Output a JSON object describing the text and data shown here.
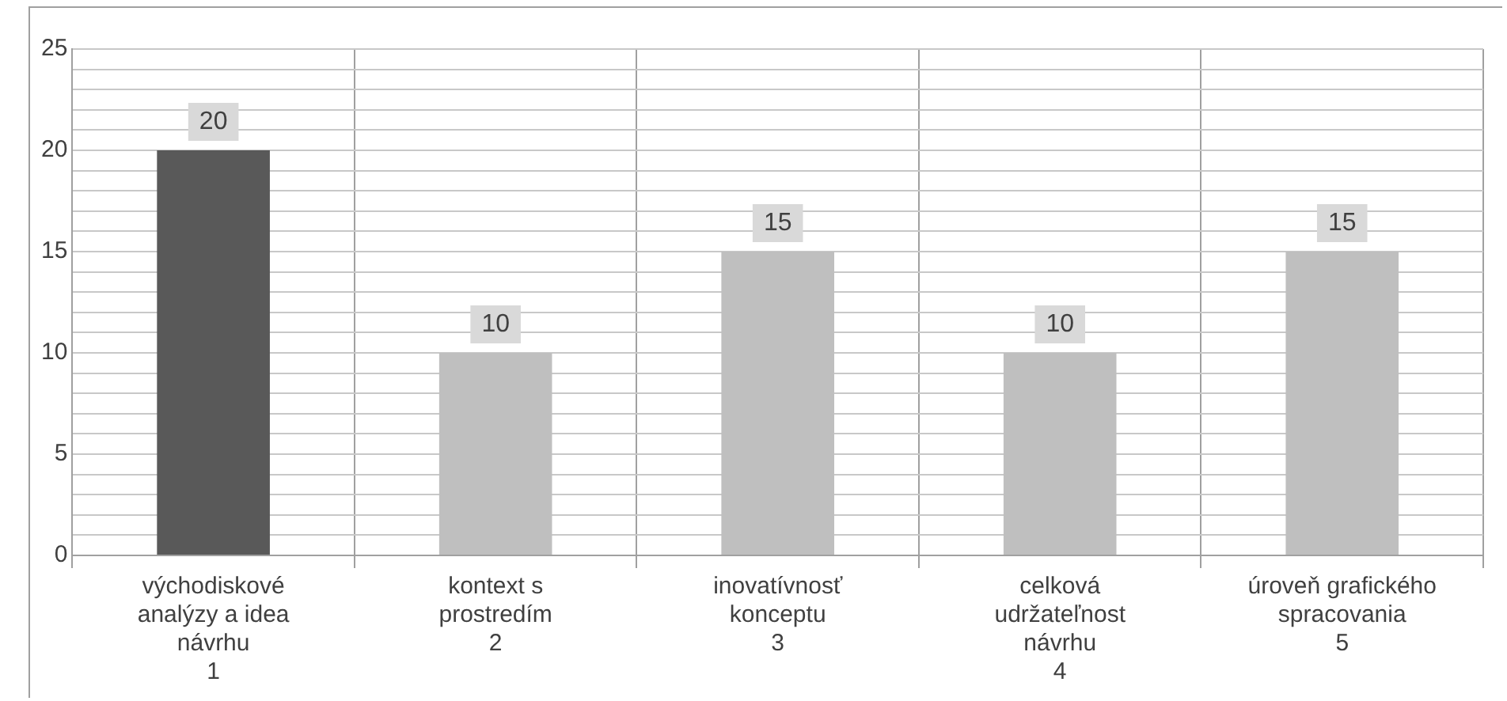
{
  "chart_data": {
    "type": "bar",
    "categories": [
      "východiskové\nanalýzy a idea\nnávrhu\n1",
      "kontext s\nprostredím\n2",
      "inovatívnosť\nkonceptu\n3",
      "celková\nudržateľnost\nnávrhu\n4",
      "úroveň grafického\nspracovania\n5"
    ],
    "values": [
      20,
      10,
      15,
      10,
      15
    ],
    "colors": [
      "#595959",
      "#bfbfbf",
      "#bfbfbf",
      "#bfbfbf",
      "#bfbfbf"
    ],
    "ylim": [
      0,
      25
    ],
    "yticks": [
      0,
      {
        "value": 1,
        "label": null
      },
      {
        "value": 2,
        "label": null
      },
      {
        "value": 3,
        "label": null
      },
      {
        "value": 4,
        "label": null
      },
      5,
      {
        "value": 6,
        "label": null
      },
      {
        "value": 7,
        "label": null
      },
      {
        "value": 8,
        "label": null
      },
      {
        "value": 9,
        "label": null
      },
      10,
      {
        "value": 11,
        "label": null
      },
      {
        "value": 12,
        "label": null
      },
      {
        "value": 13,
        "label": null
      },
      {
        "value": 14,
        "label": null
      },
      15,
      {
        "value": 16,
        "label": null
      },
      {
        "value": 17,
        "label": null
      },
      {
        "value": 18,
        "label": null
      },
      {
        "value": 19,
        "label": null
      },
      20,
      {
        "value": 21,
        "label": null
      },
      {
        "value": 22,
        "label": null
      },
      {
        "value": 23,
        "label": null
      },
      {
        "value": 24,
        "label": null
      },
      25
    ],
    "grid": true,
    "data_labels": true
  }
}
